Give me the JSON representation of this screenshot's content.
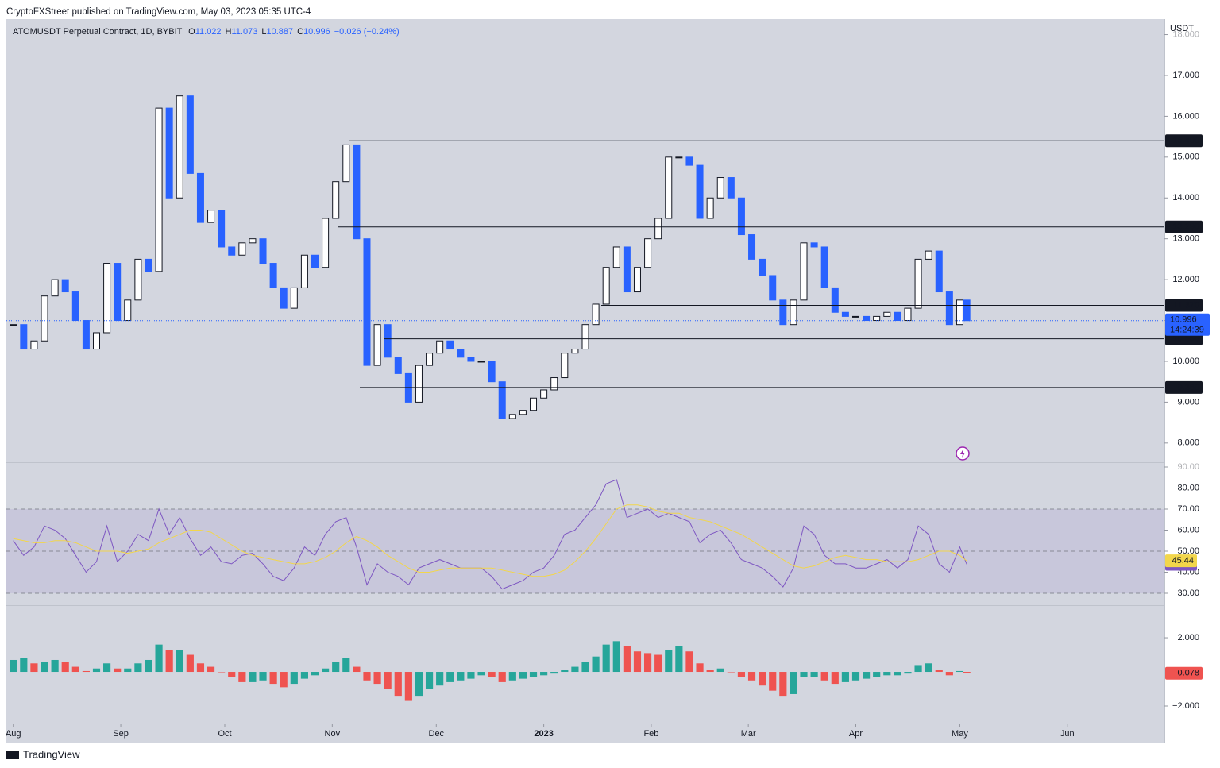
{
  "page": {
    "published": "CryptoFXStreet published on TradingView.com, May 03, 2023 05:35 UTC-4",
    "brand": "TradingView"
  },
  "chart_data": [
    {
      "type": "candlestick",
      "title": "ATOMUSDT Perpetual Contract, 1D, BYBIT",
      "ohlc": [
        {
          "key": "O",
          "value": 11.022
        },
        {
          "key": "H",
          "value": 11.073
        },
        {
          "key": "L",
          "value": 10.887
        },
        {
          "key": "C",
          "value": 10.996
        }
      ],
      "change": "−0.026 (−0.24%)",
      "y_label": "USDT",
      "countdown": "14:24:39",
      "colors": {
        "up": "#ffffff",
        "down": "#2962ff",
        "outline": "#131722"
      },
      "x": [
        0,
        3,
        6,
        9,
        12,
        15,
        18,
        21,
        24,
        27,
        30,
        33,
        36,
        39,
        42,
        45,
        48,
        51,
        54,
        57,
        60,
        63,
        66,
        69,
        72,
        75,
        78,
        81,
        84,
        87,
        90,
        93,
        96,
        99,
        102,
        105,
        108,
        111,
        114,
        117,
        120,
        123,
        126,
        129,
        132,
        135,
        138,
        141,
        144,
        147,
        150,
        153,
        156,
        159,
        162,
        165,
        168,
        171,
        174,
        177,
        180,
        183,
        186,
        189,
        192,
        195,
        198,
        201,
        204,
        207,
        210,
        213,
        216,
        219,
        222,
        225,
        228,
        231,
        234,
        237,
        240,
        243,
        246,
        249,
        252,
        255,
        258,
        261,
        264,
        267,
        270,
        273,
        275
      ],
      "values": [
        10.9,
        10.3,
        10.5,
        11.6,
        12.0,
        11.7,
        11.0,
        10.3,
        10.7,
        12.4,
        11.0,
        11.5,
        12.5,
        12.2,
        16.2,
        14.0,
        16.5,
        14.6,
        13.4,
        13.7,
        12.8,
        12.6,
        12.9,
        13.0,
        12.4,
        11.8,
        11.3,
        11.8,
        12.6,
        12.3,
        13.5,
        14.4,
        15.3,
        13.0,
        9.9,
        10.9,
        10.1,
        9.7,
        9.0,
        9.9,
        10.2,
        10.5,
        10.3,
        10.1,
        10.0,
        10.0,
        9.5,
        8.6,
        8.7,
        8.8,
        9.1,
        9.3,
        9.6,
        10.2,
        10.3,
        10.9,
        11.4,
        12.3,
        12.8,
        11.7,
        12.3,
        13.0,
        13.5,
        15.0,
        15.0,
        14.8,
        13.5,
        14.0,
        14.5,
        14.0,
        13.1,
        12.5,
        12.1,
        11.5,
        10.9,
        11.5,
        12.9,
        12.8,
        11.8,
        11.2,
        11.1,
        11.1,
        11.0,
        11.1,
        11.2,
        11.0,
        11.3,
        12.5,
        12.7,
        11.7,
        10.9,
        11.5,
        10.996
      ],
      "levels": [
        {
          "value": 15.4,
          "label": "15.400"
        },
        {
          "value": 13.29,
          "label": "13.290"
        },
        {
          "value": 11.37,
          "label": "11.370"
        },
        {
          "value": 10.55,
          "label": "10.550"
        },
        {
          "value": 9.36,
          "label": "9.360"
        }
      ],
      "xlim": [
        -2,
        332
      ],
      "ylim": [
        7.53,
        18.38
      ],
      "yticks": [
        {
          "value": 8,
          "label": "8.000"
        },
        {
          "value": 9,
          "label": "9.000"
        },
        {
          "value": 10,
          "label": "10.000"
        },
        {
          "value": 11,
          "label": "11.000"
        },
        {
          "value": 12,
          "label": "12.000"
        },
        {
          "value": 13,
          "label": "13.000"
        },
        {
          "value": 14,
          "label": "14.000"
        },
        {
          "value": 15,
          "label": "15.000"
        },
        {
          "value": 16,
          "label": "16.000"
        },
        {
          "value": 17,
          "label": "17.000"
        },
        {
          "value": 18,
          "label": "18.000"
        }
      ]
    },
    {
      "type": "line",
      "x": [
        0,
        3,
        6,
        9,
        12,
        15,
        18,
        21,
        24,
        27,
        30,
        33,
        36,
        39,
        42,
        45,
        48,
        51,
        54,
        57,
        60,
        63,
        66,
        69,
        72,
        75,
        78,
        81,
        84,
        87,
        90,
        93,
        96,
        99,
        102,
        105,
        108,
        111,
        114,
        117,
        120,
        123,
        126,
        129,
        132,
        135,
        138,
        141,
        144,
        147,
        150,
        153,
        156,
        159,
        162,
        165,
        168,
        171,
        174,
        177,
        180,
        183,
        186,
        189,
        192,
        195,
        198,
        201,
        204,
        207,
        210,
        213,
        216,
        219,
        222,
        225,
        228,
        231,
        234,
        237,
        240,
        243,
        246,
        249,
        252,
        255,
        258,
        261,
        264,
        267,
        270,
        273,
        275
      ],
      "series": [
        {
          "color": "#7e57c2",
          "values": [
            55,
            48,
            52,
            62,
            60,
            56,
            48,
            40,
            45,
            62,
            45,
            50,
            58,
            55,
            70,
            58,
            66,
            56,
            48,
            52,
            45,
            44,
            48,
            49,
            44,
            38,
            36,
            42,
            52,
            48,
            58,
            64,
            66,
            52,
            34,
            44,
            40,
            38,
            34,
            42,
            44,
            46,
            44,
            42,
            42,
            42,
            38,
            32,
            34,
            36,
            40,
            42,
            48,
            58,
            60,
            66,
            72,
            82,
            84,
            66,
            68,
            70,
            66,
            68,
            66,
            64,
            54,
            58,
            60,
            54,
            46,
            44,
            42,
            38,
            33,
            42,
            62,
            58,
            48,
            44,
            44,
            42,
            42,
            44,
            46,
            42,
            46,
            62,
            58,
            44,
            40,
            52,
            43.78
          ]
        },
        {
          "color": "#f2d64b",
          "values": [
            56,
            55,
            54,
            54,
            55,
            55,
            54,
            52,
            50,
            50,
            50,
            49,
            50,
            51,
            54,
            56,
            58,
            60,
            60,
            59,
            56,
            53,
            50,
            48,
            47,
            46,
            45,
            44,
            44,
            45,
            47,
            50,
            54,
            57,
            55,
            52,
            48,
            45,
            42,
            40,
            40,
            41,
            42,
            42,
            42,
            42,
            42,
            41,
            40,
            39,
            38,
            38,
            39,
            41,
            45,
            50,
            56,
            63,
            70,
            72,
            72,
            71,
            69,
            68,
            68,
            66,
            65,
            64,
            62,
            60,
            58,
            55,
            52,
            49,
            46,
            43,
            42,
            43,
            45,
            47,
            48,
            47,
            46,
            46,
            45,
            45,
            45,
            46,
            48,
            50,
            50,
            48,
            45.44
          ]
        }
      ],
      "band": [
        30,
        70
      ],
      "midline": 50,
      "xlim": [
        -2,
        332
      ],
      "ylim": [
        24.34,
        92.26
      ],
      "yticks": [
        {
          "value": 30,
          "label": "30.00"
        },
        {
          "value": 40,
          "label": "40.00"
        },
        {
          "value": 50,
          "label": "50.00"
        },
        {
          "value": 60,
          "label": "60.00"
        },
        {
          "value": 70,
          "label": "70.00"
        },
        {
          "value": 80,
          "label": "80.00"
        },
        {
          "value": 90,
          "label": "90.00"
        }
      ]
    },
    {
      "type": "bar",
      "colors": {
        "up": "#26a69a",
        "down": "#ef5350"
      },
      "x": [
        0,
        3,
        6,
        9,
        12,
        15,
        18,
        21,
        24,
        27,
        30,
        33,
        36,
        39,
        42,
        45,
        48,
        51,
        54,
        57,
        60,
        63,
        66,
        69,
        72,
        75,
        78,
        81,
        84,
        87,
        90,
        93,
        96,
        99,
        102,
        105,
        108,
        111,
        114,
        117,
        120,
        123,
        126,
        129,
        132,
        135,
        138,
        141,
        144,
        147,
        150,
        153,
        156,
        159,
        162,
        165,
        168,
        171,
        174,
        177,
        180,
        183,
        186,
        189,
        192,
        195,
        198,
        201,
        204,
        207,
        210,
        213,
        216,
        219,
        222,
        225,
        228,
        231,
        234,
        237,
        240,
        243,
        246,
        249,
        252,
        255,
        258,
        261,
        264,
        267,
        270,
        273,
        275
      ],
      "values": [
        0.7,
        0.8,
        0.5,
        0.6,
        0.7,
        0.6,
        0.3,
        0.05,
        0.2,
        0.5,
        0.2,
        0.2,
        0.5,
        0.7,
        1.6,
        1.3,
        1.3,
        1.0,
        0.5,
        0.3,
        0.0,
        -0.3,
        -0.6,
        -0.6,
        -0.5,
        -0.7,
        -0.9,
        -0.7,
        -0.4,
        -0.2,
        0.2,
        0.6,
        0.8,
        0.3,
        -0.5,
        -0.7,
        -1.0,
        -1.4,
        -1.7,
        -1.4,
        -1.0,
        -0.8,
        -0.6,
        -0.5,
        -0.4,
        -0.2,
        -0.3,
        -0.6,
        -0.5,
        -0.4,
        -0.3,
        -0.2,
        -0.1,
        0.1,
        0.3,
        0.6,
        0.9,
        1.6,
        1.8,
        1.5,
        1.2,
        1.1,
        1.0,
        1.3,
        1.5,
        1.2,
        0.5,
        0.1,
        0.2,
        0.0,
        -0.3,
        -0.5,
        -0.8,
        -1.1,
        -1.4,
        -1.3,
        -0.3,
        -0.3,
        -0.5,
        -0.7,
        -0.6,
        -0.5,
        -0.4,
        -0.3,
        -0.2,
        -0.2,
        -0.1,
        0.4,
        0.5,
        0.1,
        -0.2,
        0.05,
        -0.078
      ],
      "xlim": [
        -2,
        332
      ],
      "ylim": [
        -3.07,
        3.91
      ],
      "yticks": [
        {
          "value": -2,
          "label": "−2.000"
        },
        {
          "value": 2,
          "label": "2.000"
        }
      ],
      "xticks": [
        {
          "value": 0,
          "label": "Aug"
        },
        {
          "value": 31,
          "label": "Sep"
        },
        {
          "value": 61,
          "label": "Oct"
        },
        {
          "value": 92,
          "label": "Nov"
        },
        {
          "value": 122,
          "label": "Dec"
        },
        {
          "value": 153,
          "label": "2023"
        },
        {
          "value": 184,
          "label": "Feb"
        },
        {
          "value": 212,
          "label": "Mar"
        },
        {
          "value": 243,
          "label": "Apr"
        },
        {
          "value": 273,
          "label": "May"
        },
        {
          "value": 304,
          "label": "Jun"
        }
      ]
    }
  ]
}
